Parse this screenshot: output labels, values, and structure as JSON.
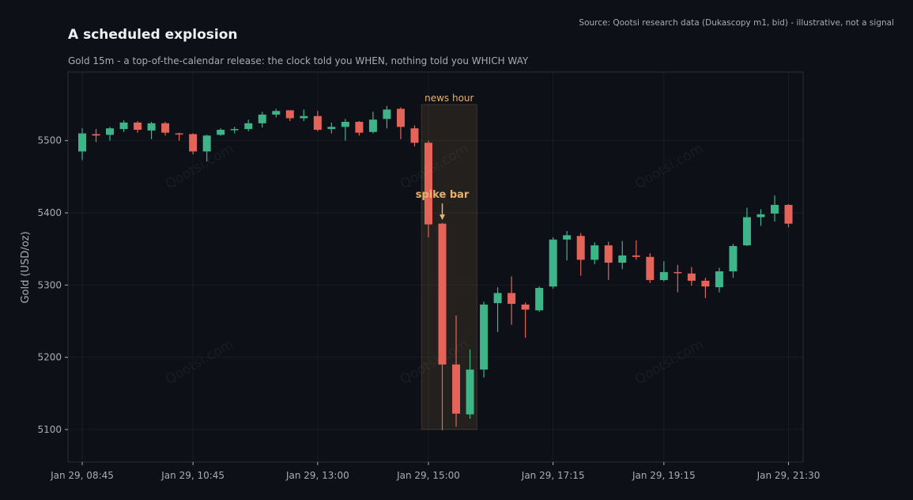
{
  "source": "Source: Qootsi research data (Dukascopy m1, bid) - illustrative, not a signal",
  "watermark": "Qootsi.com",
  "colors": {
    "up": "#3eb489",
    "down": "#e5645a",
    "accent": "#e8b070",
    "background": "#0d1016"
  },
  "chart_data": {
    "type": "candlestick",
    "title": "A scheduled explosion",
    "subtitle": "Gold 15m - a top-of-the-calendar release: the clock told you WHEN, nothing told you WHICH WAY",
    "ylabel": "Gold (USD/oz)",
    "xlabel": "",
    "ylim": [
      5055,
      5595
    ],
    "yticks": [
      5100,
      5200,
      5300,
      5400,
      5500
    ],
    "xtick_labels": [
      "Jan 29, 08:45",
      "Jan 29, 10:45",
      "Jan 29, 13:00",
      "Jan 29, 15:00",
      "Jan 29, 17:15",
      "Jan 29, 19:15",
      "Jan 29, 21:30"
    ],
    "xtick_candle_index": [
      0,
      8,
      17,
      25,
      34,
      42,
      51
    ],
    "grid": true,
    "highlight": {
      "label": "news hour",
      "from_index": 24.5,
      "to_index": 28.5,
      "y_range": [
        5100,
        5550
      ]
    },
    "annotation": {
      "label": "spike bar",
      "candle_index": 26,
      "y": 5390
    },
    "candles": [
      {
        "o": 5485,
        "h": 5517,
        "l": 5473,
        "c": 5510
      },
      {
        "o": 5509,
        "h": 5516,
        "l": 5498,
        "c": 5507
      },
      {
        "o": 5508,
        "h": 5519,
        "l": 5500,
        "c": 5517
      },
      {
        "o": 5516,
        "h": 5528,
        "l": 5512,
        "c": 5525
      },
      {
        "o": 5525,
        "h": 5527,
        "l": 5511,
        "c": 5515
      },
      {
        "o": 5514,
        "h": 5526,
        "l": 5502,
        "c": 5524
      },
      {
        "o": 5524,
        "h": 5526,
        "l": 5507,
        "c": 5511
      },
      {
        "o": 5510,
        "h": 5511,
        "l": 5500,
        "c": 5509
      },
      {
        "o": 5509,
        "h": 5510,
        "l": 5481,
        "c": 5485
      },
      {
        "o": 5485,
        "h": 5508,
        "l": 5471,
        "c": 5507
      },
      {
        "o": 5508,
        "h": 5517,
        "l": 5507,
        "c": 5515
      },
      {
        "o": 5516,
        "h": 5519,
        "l": 5510,
        "c": 5516
      },
      {
        "o": 5516,
        "h": 5529,
        "l": 5513,
        "c": 5524
      },
      {
        "o": 5524,
        "h": 5540,
        "l": 5518,
        "c": 5536
      },
      {
        "o": 5536,
        "h": 5544,
        "l": 5532,
        "c": 5541
      },
      {
        "o": 5542,
        "h": 5542,
        "l": 5527,
        "c": 5531
      },
      {
        "o": 5531,
        "h": 5543,
        "l": 5527,
        "c": 5534
      },
      {
        "o": 5534,
        "h": 5541,
        "l": 5513,
        "c": 5515
      },
      {
        "o": 5516,
        "h": 5525,
        "l": 5510,
        "c": 5519
      },
      {
        "o": 5519,
        "h": 5530,
        "l": 5500,
        "c": 5526
      },
      {
        "o": 5526,
        "h": 5527,
        "l": 5507,
        "c": 5511
      },
      {
        "o": 5512,
        "h": 5540,
        "l": 5510,
        "c": 5529
      },
      {
        "o": 5530,
        "h": 5548,
        "l": 5517,
        "c": 5543
      },
      {
        "o": 5544,
        "h": 5546,
        "l": 5502,
        "c": 5519
      },
      {
        "o": 5517,
        "h": 5521,
        "l": 5492,
        "c": 5497
      },
      {
        "o": 5497,
        "h": 5500,
        "l": 5366,
        "c": 5384
      },
      {
        "o": 5385,
        "h": 5386,
        "l": 5099,
        "c": 5190
      },
      {
        "o": 5190,
        "h": 5258,
        "l": 5104,
        "c": 5122
      },
      {
        "o": 5121,
        "h": 5211,
        "l": 5115,
        "c": 5183
      },
      {
        "o": 5183,
        "h": 5277,
        "l": 5172,
        "c": 5273
      },
      {
        "o": 5275,
        "h": 5297,
        "l": 5235,
        "c": 5289
      },
      {
        "o": 5289,
        "h": 5312,
        "l": 5245,
        "c": 5274
      },
      {
        "o": 5273,
        "h": 5276,
        "l": 5227,
        "c": 5266
      },
      {
        "o": 5265,
        "h": 5298,
        "l": 5263,
        "c": 5296
      },
      {
        "o": 5298,
        "h": 5366,
        "l": 5295,
        "c": 5363
      },
      {
        "o": 5363,
        "h": 5375,
        "l": 5334,
        "c": 5369
      },
      {
        "o": 5368,
        "h": 5372,
        "l": 5313,
        "c": 5335
      },
      {
        "o": 5335,
        "h": 5359,
        "l": 5329,
        "c": 5355
      },
      {
        "o": 5355,
        "h": 5360,
        "l": 5307,
        "c": 5331
      },
      {
        "o": 5331,
        "h": 5361,
        "l": 5322,
        "c": 5341
      },
      {
        "o": 5341,
        "h": 5362,
        "l": 5335,
        "c": 5339
      },
      {
        "o": 5339,
        "h": 5344,
        "l": 5303,
        "c": 5307
      },
      {
        "o": 5307,
        "h": 5333,
        "l": 5305,
        "c": 5318
      },
      {
        "o": 5318,
        "h": 5328,
        "l": 5290,
        "c": 5317
      },
      {
        "o": 5316,
        "h": 5325,
        "l": 5299,
        "c": 5306
      },
      {
        "o": 5306,
        "h": 5310,
        "l": 5282,
        "c": 5298
      },
      {
        "o": 5297,
        "h": 5324,
        "l": 5290,
        "c": 5319
      },
      {
        "o": 5319,
        "h": 5357,
        "l": 5310,
        "c": 5354
      },
      {
        "o": 5355,
        "h": 5407,
        "l": 5354,
        "c": 5394
      },
      {
        "o": 5394,
        "h": 5405,
        "l": 5382,
        "c": 5398
      },
      {
        "o": 5399,
        "h": 5424,
        "l": 5388,
        "c": 5411
      },
      {
        "o": 5411,
        "h": 5412,
        "l": 5380,
        "c": 5385
      }
    ]
  }
}
